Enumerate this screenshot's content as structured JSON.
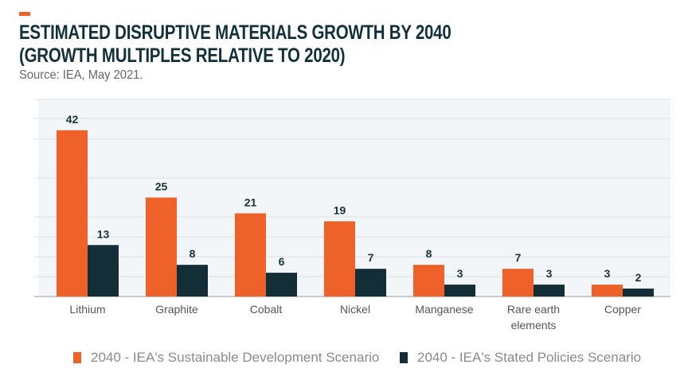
{
  "title_line1": "ESTIMATED DISRUPTIVE MATERIALS GROWTH BY 2040",
  "title_line2": "(GROWTH MULTIPLES RELATIVE TO 2020)",
  "source": "Source: IEA, May 2021.",
  "colors": {
    "sds": "#ee6229",
    "sps": "#132e37",
    "plot_bg": "#f3f6f8",
    "grid": "#dcdfe1"
  },
  "chart_data": {
    "type": "bar",
    "categories": [
      "Lithium",
      "Graphite",
      "Cobalt",
      "Nickel",
      "Manganese",
      "Rare earth elements",
      "Copper"
    ],
    "category_lines": [
      [
        "Lithium"
      ],
      [
        "Graphite"
      ],
      [
        "Cobalt"
      ],
      [
        "Nickel"
      ],
      [
        "Manganese"
      ],
      [
        "Rare earth",
        "elements"
      ],
      [
        "Copper"
      ]
    ],
    "series": [
      {
        "name": "2040 - IEA's Sustainable Development Scenario",
        "values": [
          42,
          25,
          21,
          19,
          8,
          7,
          3
        ]
      },
      {
        "name": "2040 - IEA's Stated Policies Scenario",
        "values": [
          13,
          8,
          6,
          7,
          3,
          3,
          2
        ]
      }
    ],
    "ylim": [
      0,
      50
    ],
    "grid": true,
    "legend_placement": "bottom",
    "data_labels": true
  }
}
